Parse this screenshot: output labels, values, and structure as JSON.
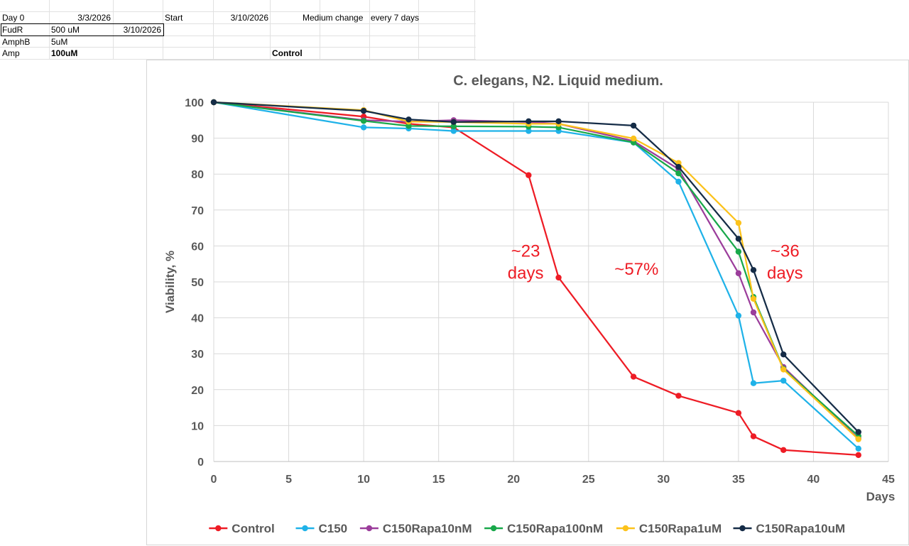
{
  "sheet": {
    "rows": [
      {
        "a": "Day 0",
        "b": "3/3/2026",
        "d": "Start",
        "e": "3/10/2026",
        "f": "Medium change",
        "g": "every 7 days"
      },
      {
        "a": "FudR",
        "b": "500 uM",
        "c": "3/10/2026"
      },
      {
        "a": "AmphB",
        "b": "5uM"
      },
      {
        "a": "Amp",
        "b": "100uM",
        "f": "Control"
      }
    ]
  },
  "chart_data": {
    "type": "line",
    "title": "C. elegans, N2. Liquid medium.",
    "xlabel": "Days",
    "ylabel": "Viability, %",
    "xlim": [
      0,
      45
    ],
    "ylim": [
      0,
      100
    ],
    "xticks": [
      0,
      5,
      10,
      15,
      20,
      25,
      30,
      35,
      40,
      45
    ],
    "yticks": [
      0,
      10,
      20,
      30,
      40,
      50,
      60,
      70,
      80,
      90,
      100
    ],
    "grid": true,
    "legend_position": "bottom",
    "series": [
      {
        "name": "Control",
        "color": "#ee1c25",
        "x": [
          0,
          10,
          13,
          16,
          21,
          23,
          28,
          31,
          35,
          36,
          38,
          43
        ],
        "y": [
          100,
          96,
          94,
          93,
          79.7,
          51.2,
          23.6,
          18.3,
          13.5,
          7,
          3.2,
          1.8
        ]
      },
      {
        "name": "C150",
        "color": "#1fb2e8",
        "x": [
          0,
          10,
          13,
          16,
          21,
          23,
          28,
          31,
          35,
          36,
          38,
          43
        ],
        "y": [
          100,
          93,
          92.7,
          92,
          92,
          92,
          88.8,
          77.9,
          40.6,
          21.8,
          22.5,
          3.6
        ]
      },
      {
        "name": "C150Rapa10nM",
        "color": "#9b3d9b",
        "x": [
          0,
          10,
          13,
          16,
          21,
          23,
          28,
          31,
          35,
          36,
          38,
          43
        ],
        "y": [
          100,
          95,
          94.6,
          95,
          94.5,
          94,
          89.2,
          81.4,
          52.4,
          41.5,
          26.3,
          6.4
        ]
      },
      {
        "name": "C150Rapa100nM",
        "color": "#18a84a",
        "x": [
          0,
          10,
          13,
          16,
          21,
          23,
          28,
          31,
          35,
          36,
          38,
          43
        ],
        "y": [
          100,
          94.8,
          93.4,
          93.3,
          93.2,
          93,
          88.8,
          80.2,
          58.4,
          45.8,
          25.8,
          7.1
        ]
      },
      {
        "name": "C150Rapa1uM",
        "color": "#fcc21b",
        "x": [
          0,
          10,
          13,
          16,
          21,
          23,
          28,
          31,
          35,
          36,
          38,
          43
        ],
        "y": [
          100,
          97.8,
          94.6,
          94.5,
          94,
          94,
          89.9,
          83.1,
          66.4,
          45.3,
          25.6,
          6.2
        ]
      },
      {
        "name": "C150Rapa10uM",
        "color": "#152c47",
        "x": [
          0,
          10,
          13,
          16,
          21,
          23,
          28,
          31,
          35,
          36,
          38,
          43
        ],
        "y": [
          100,
          97.6,
          95.2,
          94.5,
          94.7,
          94.7,
          93.5,
          82,
          62,
          53.3,
          29.8,
          8.2
        ]
      }
    ],
    "annotations": [
      {
        "lines": [
          "~23",
          "days"
        ],
        "x": 20.8,
        "y": 57
      },
      {
        "lines": [
          "~57%"
        ],
        "x": 28.2,
        "y": 52
      },
      {
        "lines": [
          "~36",
          "days"
        ],
        "x": 38.1,
        "y": 57
      }
    ]
  }
}
